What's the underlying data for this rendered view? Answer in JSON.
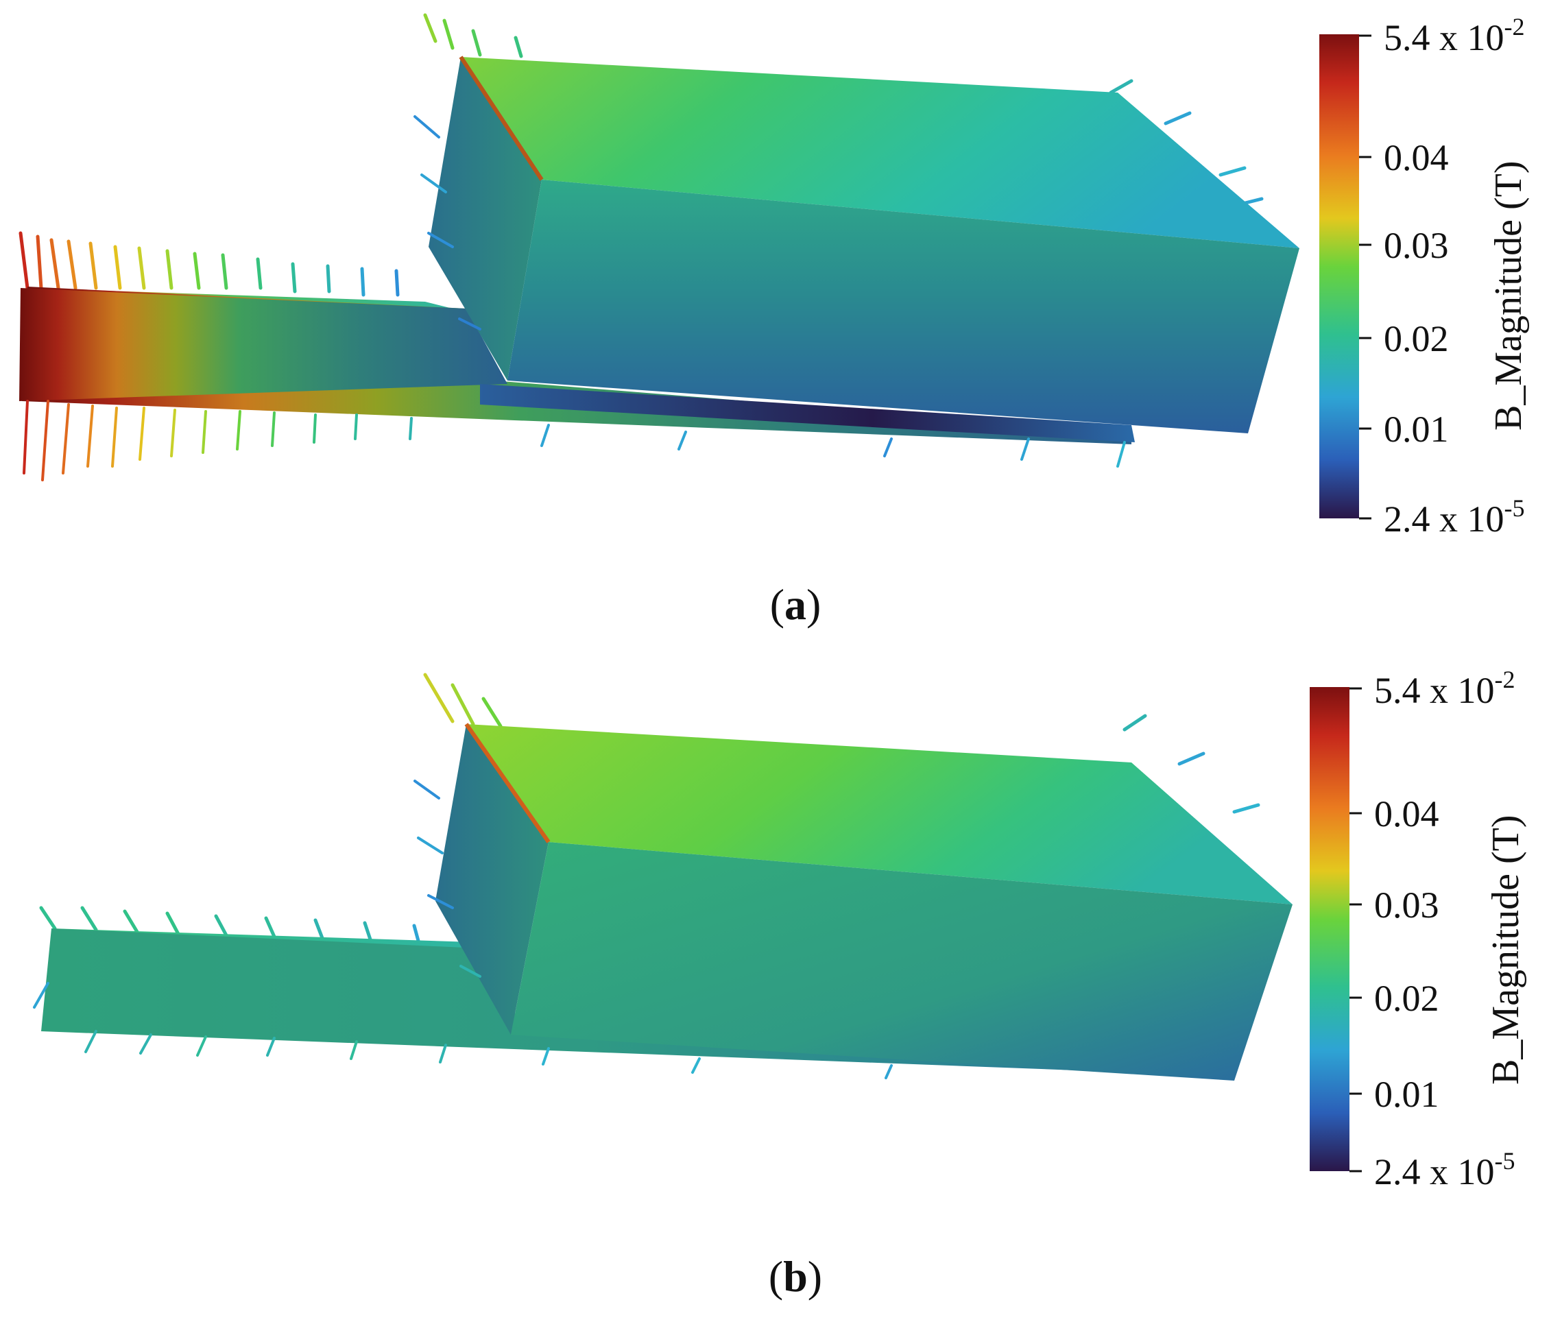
{
  "colors": {
    "scale": [
      "#2a1648",
      "#2b5fb8",
      "#2ea4d4",
      "#2fc08f",
      "#6ad33c",
      "#e3c81e",
      "#ea7b1f",
      "#c6281b",
      "#7c1010"
    ],
    "background": "#ffffff",
    "text": "#111111"
  },
  "panels": [
    {
      "id": "a",
      "caption": {
        "open": "(",
        "letter": "a",
        "close": ")"
      },
      "colorbar": {
        "title": "B_Magnitude (T)",
        "range": [
          2.4e-05,
          0.054
        ],
        "ticks": [
          {
            "value": 0.054,
            "mantissa": "5.4 x 10",
            "exponent": "-2"
          },
          {
            "value": 0.04,
            "mantissa": "0.04",
            "exponent": ""
          },
          {
            "value": 0.03,
            "mantissa": "0.03",
            "exponent": ""
          },
          {
            "value": 0.02,
            "mantissa": "0.02",
            "exponent": ""
          },
          {
            "value": 0.01,
            "mantissa": "0.01",
            "exponent": ""
          },
          {
            "value": 2.4e-05,
            "mantissa": "2.4 x 10",
            "exponent": "-5"
          }
        ]
      }
    },
    {
      "id": "b",
      "caption": {
        "open": "(",
        "letter": "b",
        "close": ")"
      },
      "colorbar": {
        "title": "B_Magnitude (T)",
        "range": [
          2.4e-05,
          0.054
        ],
        "ticks": [
          {
            "value": 0.054,
            "mantissa": "5.4 x 10",
            "exponent": "-2"
          },
          {
            "value": 0.04,
            "mantissa": "0.04",
            "exponent": ""
          },
          {
            "value": 0.03,
            "mantissa": "0.03",
            "exponent": ""
          },
          {
            "value": 0.02,
            "mantissa": "0.02",
            "exponent": ""
          },
          {
            "value": 0.01,
            "mantissa": "0.01",
            "exponent": ""
          },
          {
            "value": 2.4e-05,
            "mantissa": "2.4 x 10",
            "exponent": "-5"
          }
        ]
      }
    }
  ]
}
